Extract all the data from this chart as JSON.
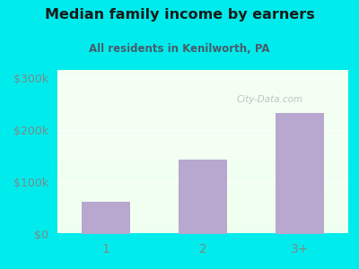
{
  "title": "Median family income by earners",
  "subtitle": "All residents in Kenilworth, PA",
  "categories": [
    "1",
    "2",
    "3+"
  ],
  "values": [
    62000,
    143000,
    232000
  ],
  "bar_color": "#b8a8d0",
  "yticks": [
    0,
    100000,
    200000,
    300000
  ],
  "ytick_labels": [
    "$0",
    "$100k",
    "$200k",
    "$300k"
  ],
  "ylim": [
    0,
    315000
  ],
  "outer_bg": "#00ecec",
  "title_color": "#1a1a1a",
  "subtitle_color": "#4a5a6a",
  "tick_color": "#7a8a8a",
  "watermark": "City-Data.com",
  "grid_color": "#ccddcc"
}
